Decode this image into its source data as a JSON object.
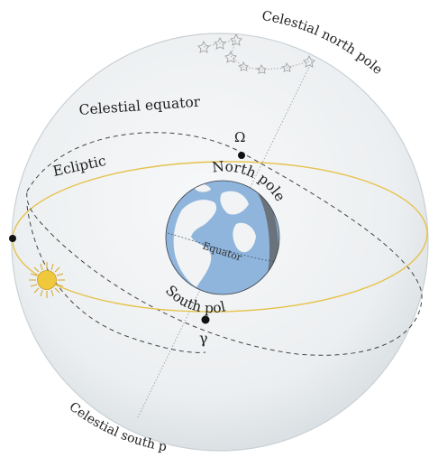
{
  "labels": {
    "celestial_north_pole": "Celestial north pole",
    "celestial_south_pole": "Celestial south pole",
    "celestial_equator": "Celestial equator",
    "ecliptic": "Ecliptic",
    "north_pole": "North pole",
    "south_pole": "South pole",
    "equator": "Equator",
    "omega": "Ω",
    "gamma": "γ"
  },
  "colors": {
    "sphere_fill": "#edf0f1",
    "sphere_edge": "#cfd6d9",
    "ecliptic_line": "#e6c24a",
    "dashed_line": "#444444",
    "axis_line": "#9a9a9a",
    "earth_ocean": "#8fb5dd",
    "earth_land": "#f1f3f4",
    "earth_shadow": "#525a63",
    "sun_fill": "#f0c83c",
    "sun_rays": "#d4a62a",
    "star_outline": "#a3a3a3",
    "node_dot": "#111111"
  },
  "icons": {
    "sun": "sun-icon",
    "constellation": "constellation-icon",
    "earth": "earth-globe-icon"
  }
}
